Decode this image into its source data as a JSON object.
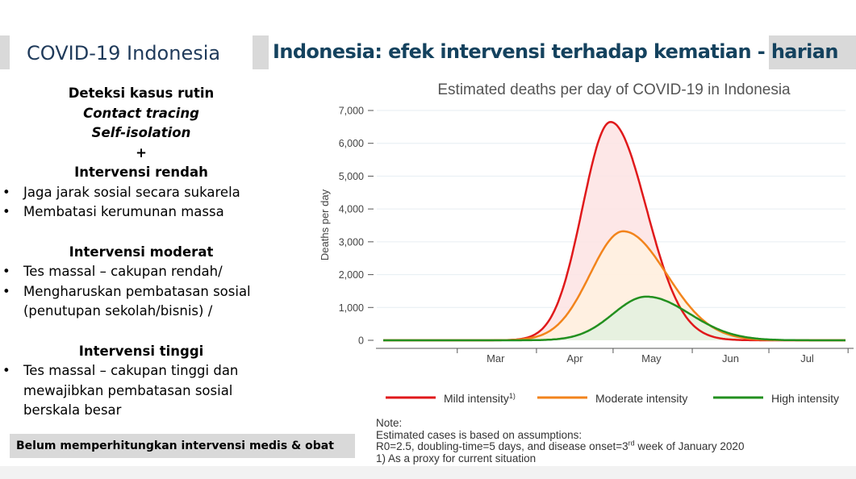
{
  "left_panel": {
    "title": "COVID-19 Indonesia",
    "heading_1": "Deteksi kasus rutin",
    "heading_2": "Contact tracing",
    "heading_3": "Self-isolation",
    "plus": "+",
    "low": {
      "title": "Intervensi rendah",
      "items": [
        "Jaga jarak sosial secara sukarela",
        "Membatasi kerumunan massa"
      ]
    },
    "moderate": {
      "title": "Intervensi moderat",
      "items": [
        "Tes massal – cakupan rendah/",
        "Mengharuskan pembatasan sosial (penutupan sekolah/bisnis) /"
      ]
    },
    "high": {
      "title": "Intervensi tinggi",
      "items": [
        "Tes massal – cakupan tinggi dan mewajibkan pembatasan sosial berskala besar"
      ]
    },
    "footer": "Belum memperhitungkan intervensi medis & obat"
  },
  "right_panel": {
    "title": "Indonesia: efek intervensi terhadap kematian - harian"
  },
  "chart_data": {
    "type": "area",
    "title": "Estimated deaths per day of COVID-19 in Indonesia",
    "xlabel": "",
    "ylabel": "Deaths per day",
    "ylim": [
      0,
      7000
    ],
    "yticks": [
      0,
      1000,
      2000,
      3000,
      4000,
      5000,
      6000,
      7000
    ],
    "ytick_labels": [
      "0",
      "1,000",
      "2,000",
      "3,000",
      "4,000",
      "5,000",
      "6,000",
      "7,000"
    ],
    "xtick_labels": [
      "Mar",
      "Apr",
      "May",
      "Jun",
      "Jul"
    ],
    "x_unit": "days from 2020-02-01",
    "xlim": [
      0,
      181
    ],
    "grid": true,
    "legend_position": "bottom",
    "series": [
      {
        "name": "Mild intensity",
        "legend_sup": "1)",
        "color": "#e0191b",
        "fill": "#fde3e3",
        "peak": 6650,
        "peak_day": 89,
        "spread_left": 11,
        "spread_right": 14
      },
      {
        "name": "Moderate intensity",
        "color": "#f2841c",
        "fill": "#fff1df",
        "peak": 3320,
        "peak_day": 94,
        "spread_left": 13,
        "spread_right": 17
      },
      {
        "name": "High intensity",
        "color": "#23901f",
        "fill": "#e3f1df",
        "peak": 1330,
        "peak_day": 103,
        "spread_left": 13,
        "spread_right": 17
      }
    ]
  },
  "note": {
    "line1": "Note:",
    "line2": "Estimated cases is based on assumptions:",
    "line3_a": "R0=2.5, doubling-time=5 days, and disease onset=3",
    "line3_sup": "rd",
    "line3_b": " week of January 2020",
    "line4": "1) As a proxy for current situation"
  }
}
